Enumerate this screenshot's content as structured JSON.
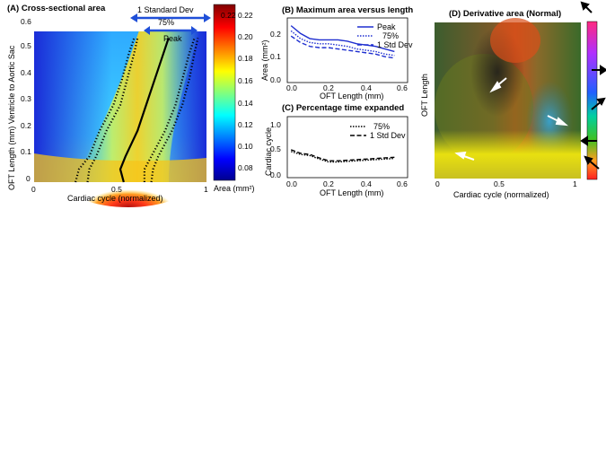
{
  "chart_data": [
    {
      "id": "A",
      "type": "heatmap",
      "title": "(A) Cross-sectional area",
      "xlabel": "Cardiac cycle (normalized)",
      "ylabel": "OFT Length (mm) Ventricle to Aortic Sac",
      "xlim": [
        0,
        1
      ],
      "ylim": [
        0,
        0.6
      ],
      "xticks": [
        "0",
        "0.5",
        "1"
      ],
      "yticks": [
        "0",
        "0.1",
        "0.2",
        "0.3",
        "0.4",
        "0.5",
        "0.6"
      ],
      "colorbar": {
        "label": "Area (mm²)",
        "range": [
          0.07,
          0.23
        ],
        "ticks": [
          "0.08",
          "0.10",
          "0.12",
          "0.14",
          "0.16",
          "0.18",
          "0.20",
          "0.22"
        ]
      },
      "annotations": [
        "1 Standard Dev",
        "75%",
        "Peak"
      ],
      "peak_line": {
        "y": [
          0,
          0.05,
          0.1,
          0.2,
          0.3,
          0.4,
          0.5,
          0.56
        ],
        "x": [
          0.52,
          0.5,
          0.53,
          0.6,
          0.65,
          0.7,
          0.75,
          0.78
        ]
      },
      "band_75": {
        "y": [
          0,
          0.05,
          0.1,
          0.2,
          0.3,
          0.4,
          0.5,
          0.56
        ],
        "left": [
          0.31,
          0.32,
          0.36,
          0.42,
          0.5,
          0.54,
          0.58,
          0.6
        ],
        "right": [
          0.64,
          0.64,
          0.68,
          0.76,
          0.82,
          0.86,
          0.9,
          0.93
        ]
      },
      "band_1sd": {
        "y": [
          0,
          0.05,
          0.1,
          0.2,
          0.3,
          0.4,
          0.5,
          0.56
        ],
        "left": [
          0.24,
          0.26,
          0.32,
          0.38,
          0.46,
          0.51,
          0.55,
          0.58
        ],
        "right": [
          0.68,
          0.69,
          0.72,
          0.8,
          0.86,
          0.9,
          0.93,
          0.95
        ]
      }
    },
    {
      "id": "B",
      "type": "line",
      "title": "(B) Maximum area versus length",
      "xlabel": "OFT Length (mm)",
      "ylabel": "Area (mm²)",
      "xlim": [
        -0.02,
        0.62
      ],
      "ylim": [
        0,
        0.25
      ],
      "xticks": [
        "0.0",
        "0.2",
        "0.4",
        "0.6"
      ],
      "yticks": [
        "0.0",
        "0.1",
        "0.2"
      ],
      "x": [
        0,
        0.05,
        0.1,
        0.15,
        0.2,
        0.25,
        0.3,
        0.35,
        0.4,
        0.45,
        0.5,
        0.55
      ],
      "series": [
        {
          "name": "Peak",
          "style": "solid",
          "values": [
            0.22,
            0.19,
            0.17,
            0.165,
            0.165,
            0.165,
            0.16,
            0.15,
            0.145,
            0.14,
            0.13,
            0.12
          ]
        },
        {
          "name": "75%",
          "style": "dotted",
          "values": [
            0.2,
            0.17,
            0.155,
            0.15,
            0.15,
            0.145,
            0.14,
            0.13,
            0.125,
            0.12,
            0.11,
            0.105
          ]
        },
        {
          "name": "1 Std Dev",
          "style": "dashed",
          "values": [
            0.18,
            0.155,
            0.14,
            0.135,
            0.135,
            0.13,
            0.125,
            0.12,
            0.115,
            0.11,
            0.1,
            0.095
          ]
        }
      ]
    },
    {
      "id": "C",
      "type": "line",
      "title": "(C) Percentage time expanded",
      "xlabel": "OFT Length (mm)",
      "ylabel": "Cardiac cycle",
      "xlim": [
        -0.02,
        0.62
      ],
      "ylim": [
        0,
        1.05
      ],
      "xticks": [
        "0.0",
        "0.2",
        "0.4",
        "0.6"
      ],
      "yticks": [
        "0.0",
        "0.5",
        "1.0"
      ],
      "x": [
        0,
        0.05,
        0.1,
        0.15,
        0.2,
        0.25,
        0.3,
        0.35,
        0.4,
        0.45,
        0.5,
        0.55
      ],
      "series": [
        {
          "name": "75%",
          "style": "dotted",
          "values": [
            0.45,
            0.4,
            0.38,
            0.32,
            0.27,
            0.27,
            0.28,
            0.29,
            0.3,
            0.31,
            0.32,
            0.33
          ]
        },
        {
          "name": "1 Std Dev",
          "style": "dashed",
          "values": [
            0.48,
            0.42,
            0.4,
            0.34,
            0.29,
            0.29,
            0.3,
            0.31,
            0.32,
            0.33,
            0.34,
            0.35
          ]
        }
      ]
    },
    {
      "id": "D",
      "type": "heatmap",
      "title": "(D) Derivative area (Normal)",
      "xlabel": "Cardiac cycle (normalized)",
      "ylabel": "OFT Length",
      "xticks": [
        "0",
        "0.5",
        "1"
      ]
    }
  ],
  "colors": {
    "peak_line": "#000000",
    "band_lines": "#000000",
    "std_dev_arrow": "#1f4fd8",
    "series_B": "#1f2fd0",
    "series_C": "#000000",
    "D_arrows": "#ffffff"
  }
}
